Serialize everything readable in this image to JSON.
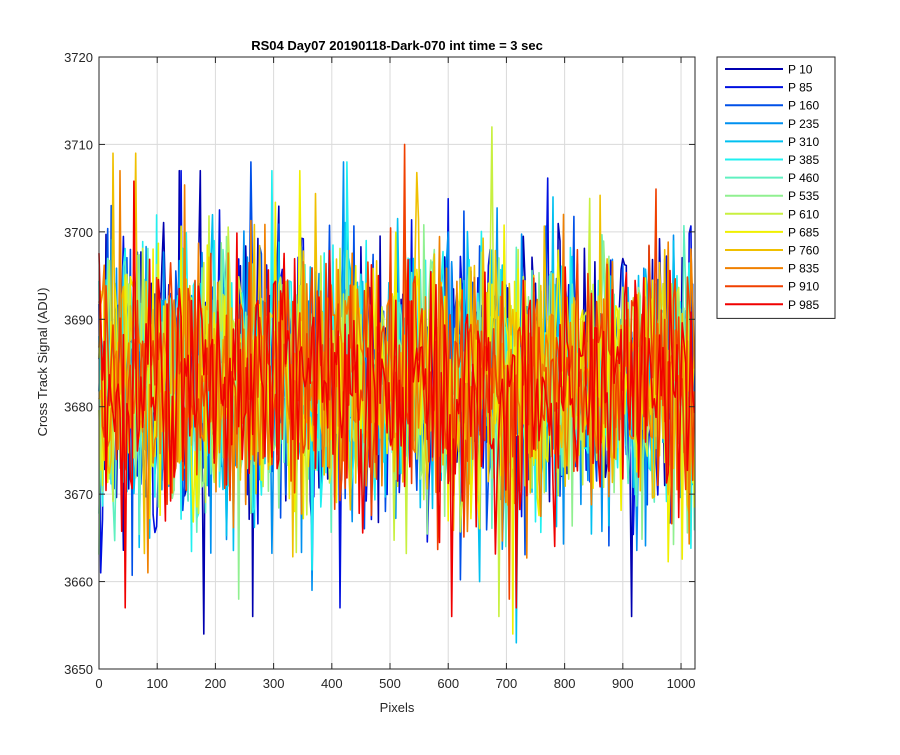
{
  "chart_data": {
    "type": "line",
    "title": "RS04 Day07 20190118-Dark-070 int time = 3 sec",
    "xlabel": "Pixels",
    "ylabel": "Cross Track Signal (ADU)",
    "xlim": [
      0,
      1024
    ],
    "ylim": [
      3650,
      3720
    ],
    "xticks": [
      0,
      100,
      200,
      300,
      400,
      500,
      600,
      700,
      800,
      900,
      1000
    ],
    "yticks": [
      3650,
      3660,
      3670,
      3680,
      3690,
      3700,
      3710,
      3720
    ],
    "grid": true,
    "legend_position": "outside-top-right",
    "series_description": "14 noisy dark-frame cross-track profiles, each fluctuating around about 3683 ADU; most samples fall between 3665 and 3703 ADU",
    "series": [
      {
        "name": "P 10",
        "color": "#0000B0",
        "mean": 3683,
        "noise_sd": 8,
        "spikes": [
          [
            181,
            3654
          ],
          [
            263,
            3656
          ],
          [
            138,
            3707
          ],
          [
            174,
            3707
          ],
          [
            915,
            3656
          ]
        ]
      },
      {
        "name": "P 85",
        "color": "#0010E0",
        "mean": 3683,
        "noise_sd": 8,
        "spikes": [
          [
            2,
            3661
          ],
          [
            415,
            3657
          ],
          [
            140,
            3707
          ]
        ]
      },
      {
        "name": "P 160",
        "color": "#0050E8",
        "mean": 3683,
        "noise_sd": 8,
        "spikes": [
          [
            262,
            3708
          ],
          [
            20,
            3703
          ]
        ]
      },
      {
        "name": "P 235",
        "color": "#0090F0",
        "mean": 3683,
        "noise_sd": 8,
        "spikes": [
          [
            367,
            3659
          ],
          [
            421,
            3708
          ]
        ]
      },
      {
        "name": "P 310",
        "color": "#00C0F0",
        "mean": 3683,
        "noise_sd": 8,
        "spikes": [
          [
            717,
            3653
          ],
          [
            655,
            3660
          ]
        ]
      },
      {
        "name": "P 385",
        "color": "#20F0F0",
        "mean": 3683,
        "noise_sd": 8,
        "spikes": [
          [
            426,
            3708
          ],
          [
            297,
            3707
          ]
        ]
      },
      {
        "name": "P 460",
        "color": "#60F0C0",
        "mean": 3683,
        "noise_sd": 7.5,
        "spikes": [
          [
            700,
            3664
          ]
        ]
      },
      {
        "name": "P 535",
        "color": "#90F090",
        "mean": 3683,
        "noise_sd": 7.5,
        "spikes": [
          [
            240,
            3658
          ]
        ]
      },
      {
        "name": "P 610",
        "color": "#C8F040",
        "mean": 3683,
        "noise_sd": 7.5,
        "spikes": [
          [
            675,
            3712
          ],
          [
            688,
            3656
          ]
        ]
      },
      {
        "name": "P 685",
        "color": "#F0F000",
        "mean": 3683,
        "noise_sd": 7.5,
        "spikes": [
          [
            710,
            3654
          ],
          [
            345,
            3707
          ]
        ]
      },
      {
        "name": "P 760",
        "color": "#F0C000",
        "mean": 3683,
        "noise_sd": 7.5,
        "spikes": [
          [
            62,
            3709
          ],
          [
            25,
            3709
          ]
        ]
      },
      {
        "name": "P 835",
        "color": "#F08000",
        "mean": 3683,
        "noise_sd": 7.5,
        "spikes": [
          [
            84,
            3661
          ],
          [
            37,
            3707
          ]
        ]
      },
      {
        "name": "P 910",
        "color": "#F04000",
        "mean": 3683,
        "noise_sd": 7,
        "spikes": [
          [
            526,
            3710
          ],
          [
            706,
            3658
          ]
        ]
      },
      {
        "name": "P 985",
        "color": "#F00000",
        "mean": 3683,
        "noise_sd": 7,
        "spikes": [
          [
            45,
            3657
          ],
          [
            606,
            3656
          ],
          [
            716,
            3657
          ]
        ]
      }
    ]
  }
}
